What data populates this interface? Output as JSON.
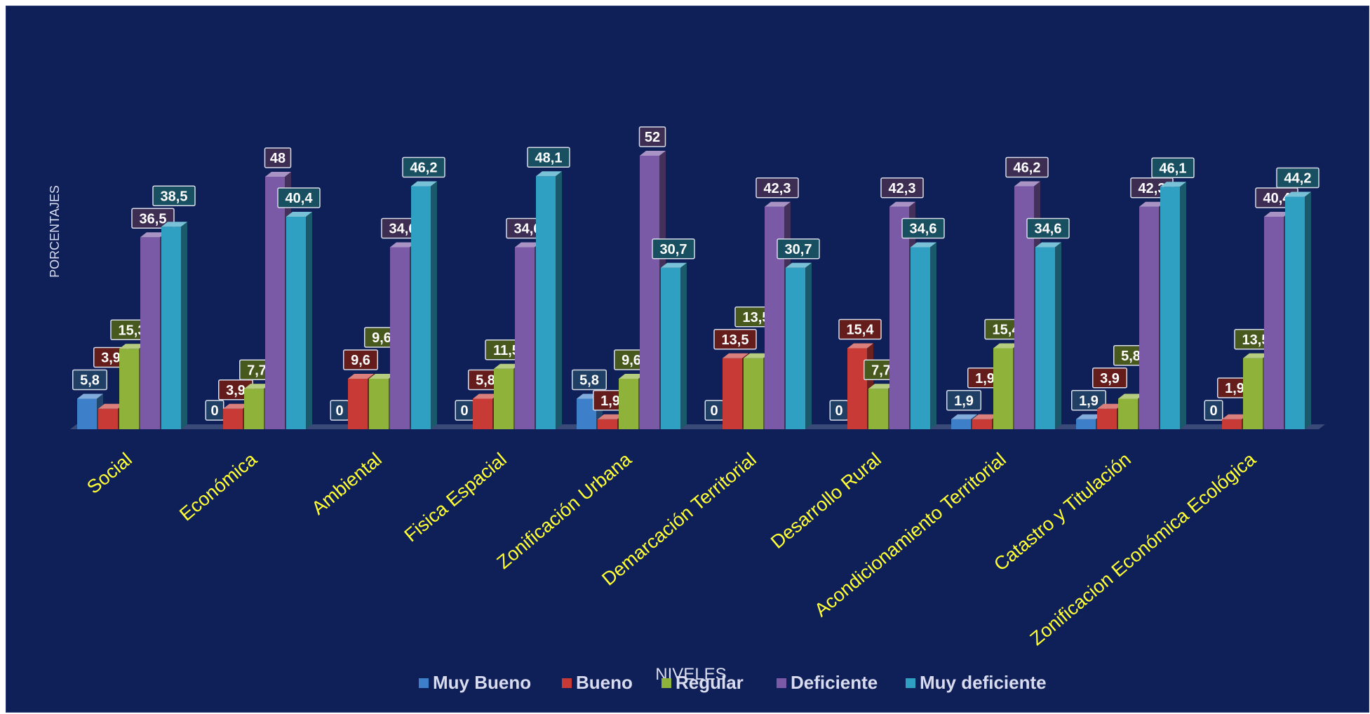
{
  "chart_data": {
    "type": "bar",
    "ylabel": "PORCENTAJES",
    "xlabel": "NIVELES",
    "ylim": [
      0,
      60
    ],
    "grid": false,
    "legend_position": "bottom",
    "categories": [
      "Social",
      "Económica",
      "Ambiental",
      "Fisica Espacial",
      "Zonificación Urbana",
      "Demarcación  Territorial",
      "Desarrollo Rural",
      "Acondicionamiento Territorial",
      "Catastro y Titulación",
      "Zonificacion Económica Ecológica"
    ],
    "series": [
      {
        "name": "Muy Bueno",
        "color": "#3d7fc8",
        "values": [
          5.8,
          0,
          0,
          0,
          5.8,
          0,
          0,
          1.9,
          1.9,
          0
        ],
        "labels": [
          "5,8",
          "0",
          "0",
          "0",
          "5,8",
          "0",
          "0",
          "1,9",
          "1,9",
          "0"
        ]
      },
      {
        "name": "Bueno",
        "color": "#c83a36",
        "values": [
          3.9,
          3.9,
          9.6,
          5.8,
          1.9,
          13.5,
          15.4,
          1.9,
          3.9,
          1.9
        ],
        "labels": [
          "3,9",
          "3,9",
          "9,6",
          "5,8",
          "1,9",
          "13,5",
          "15,4",
          "1,9",
          "3,9",
          "1,9"
        ]
      },
      {
        "name": "Regular",
        "color": "#8fb23a",
        "values": [
          15.3,
          7.7,
          9.6,
          11.5,
          9.6,
          13.5,
          7.7,
          15.4,
          5.8,
          13.5
        ],
        "labels": [
          "15,3",
          "7,7",
          "9,6",
          "11,5",
          "9,6",
          "13,5",
          "7,7",
          "15,4",
          "5,8",
          "13,5"
        ]
      },
      {
        "name": "Deficiente",
        "color": "#7a59a6",
        "values": [
          36.5,
          48,
          34.6,
          34.6,
          52,
          42.3,
          42.3,
          46.2,
          42.3,
          40.4
        ],
        "labels": [
          "36,5",
          "48",
          "34,6",
          "34,6",
          "52",
          "42,3",
          "42,3",
          "46,2",
          "42,3",
          "40,4"
        ]
      },
      {
        "name": "Muy deficiente",
        "color": "#2fa0c2",
        "values": [
          38.5,
          40.4,
          46.2,
          48.1,
          30.7,
          30.7,
          34.6,
          34.6,
          46.1,
          44.2
        ],
        "labels": [
          "38,5",
          "40,4",
          "46,2",
          "48,1",
          "30,7",
          "30,7",
          "34,6",
          "34,6",
          "46,1",
          "44,2"
        ]
      }
    ]
  }
}
